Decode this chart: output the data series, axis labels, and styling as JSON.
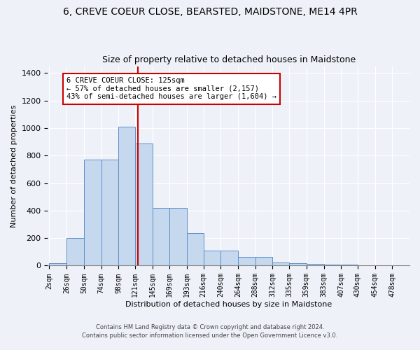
{
  "title1": "6, CREVE COEUR CLOSE, BEARSTED, MAIDSTONE, ME14 4PR",
  "title2": "Size of property relative to detached houses in Maidstone",
  "xlabel": "Distribution of detached houses by size in Maidstone",
  "ylabel": "Number of detached properties",
  "footnote1": "Contains HM Land Registry data © Crown copyright and database right 2024.",
  "footnote2": "Contains public sector information licensed under the Open Government Licence v3.0.",
  "bin_labels": [
    "2sqm",
    "26sqm",
    "50sqm",
    "74sqm",
    "98sqm",
    "121sqm",
    "145sqm",
    "169sqm",
    "193sqm",
    "216sqm",
    "240sqm",
    "264sqm",
    "288sqm",
    "312sqm",
    "335sqm",
    "359sqm",
    "383sqm",
    "407sqm",
    "430sqm",
    "454sqm",
    "478sqm"
  ],
  "bar_heights": [
    20,
    200,
    770,
    770,
    1010,
    890,
    420,
    420,
    235,
    110,
    110,
    65,
    65,
    25,
    20,
    15,
    10,
    10,
    0,
    0,
    0
  ],
  "bin_edges": [
    2,
    26,
    50,
    74,
    98,
    121,
    145,
    169,
    193,
    216,
    240,
    264,
    288,
    312,
    335,
    359,
    383,
    407,
    430,
    454,
    478,
    502
  ],
  "bar_color": "#c5d8ee",
  "bar_edge_color": "#5b8fc9",
  "vline_x": 125,
  "vline_color": "#cc0000",
  "annotation_title": "6 CREVE COEUR CLOSE: 125sqm",
  "annotation_line1": "← 57% of detached houses are smaller (2,157)",
  "annotation_line2": "43% of semi-detached houses are larger (1,604) →",
  "annotation_box_color": "#cc0000",
  "ylim": [
    0,
    1450
  ],
  "yticks": [
    0,
    200,
    400,
    600,
    800,
    1000,
    1200,
    1400
  ],
  "bg_color": "#eef2f8",
  "plot_bg_color": "#eef2f8",
  "grid_color": "#ffffff",
  "title1_fontsize": 10,
  "title2_fontsize": 9,
  "annotation_fontsize": 7.5,
  "axis_fontsize": 8,
  "ylabel_fontsize": 8,
  "footnote_fontsize": 6
}
